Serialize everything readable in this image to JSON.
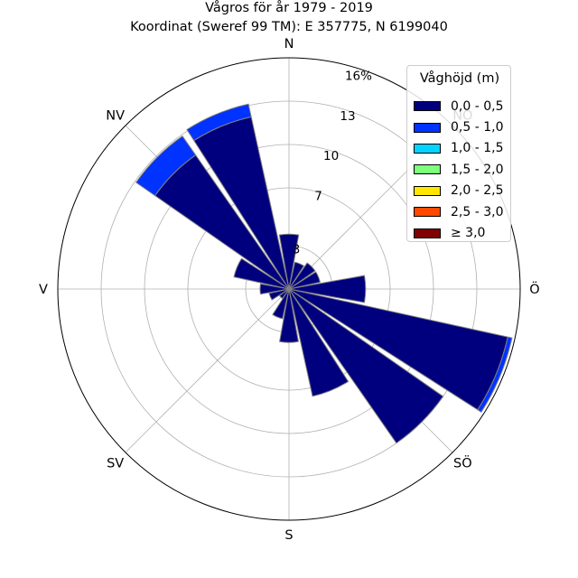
{
  "chart_data": {
    "type": "windrose",
    "title": "Vågros för år 1979 - 2019",
    "subtitle": "Koordinat (Sweref 99 TM): E 357775, N 6199040",
    "directions": [
      "N",
      "NNÖ",
      "NÖ",
      "ÖNÖ",
      "Ö",
      "ÖSÖ",
      "SÖ",
      "SSÖ",
      "S",
      "SSV",
      "SV",
      "VSV",
      "V",
      "VNV",
      "NV",
      "NNV"
    ],
    "compass_labels": [
      "N",
      "NÖ",
      "Ö",
      "SÖ",
      "S",
      "SV",
      "V",
      "NV"
    ],
    "radial_ticks": [
      "3",
      "7",
      "10",
      "13",
      "16%"
    ],
    "radial_max": 16,
    "legend": {
      "title": "Våghöjd (m)",
      "bins": [
        "0,0 - 0,5",
        "0,5 - 1,0",
        "1,0 - 1,5",
        "1,5 - 2,0",
        "2,0 - 2,5",
        "2,5 - 3,0",
        "≥ 3,0"
      ],
      "colors": [
        "#00007f",
        "#0033ff",
        "#00d4ff",
        "#7dff7a",
        "#ffe600",
        "#ff4800",
        "#7f0000"
      ]
    },
    "series": [
      {
        "name": "0,0 - 0,5",
        "values": [
          3.8,
          1.9,
          2.2,
          2.2,
          5.3,
          15.5,
          13.0,
          7.6,
          3.7,
          2.1,
          0.8,
          1.4,
          2.0,
          3.9,
          11.3,
          12.2
        ]
      },
      {
        "name": "0,5 - 1,0",
        "values": [
          0.0,
          0.0,
          0.0,
          0.0,
          0.0,
          0.3,
          0.0,
          0.0,
          0.0,
          0.0,
          0.0,
          0.0,
          0.0,
          0.0,
          1.6,
          0.9
        ]
      },
      {
        "name": "1,0 - 1,5",
        "values": [
          0,
          0,
          0,
          0,
          0,
          0,
          0,
          0,
          0,
          0,
          0,
          0,
          0,
          0,
          0,
          0
        ]
      },
      {
        "name": "1,5 - 2,0",
        "values": [
          0,
          0,
          0,
          0,
          0,
          0,
          0,
          0,
          0,
          0,
          0,
          0,
          0,
          0,
          0,
          0
        ]
      },
      {
        "name": "2,0 - 2,5",
        "values": [
          0,
          0,
          0,
          0,
          0,
          0,
          0,
          0,
          0,
          0,
          0,
          0,
          0,
          0,
          0,
          0
        ]
      },
      {
        "name": "2,5 - 3,0",
        "values": [
          0,
          0,
          0,
          0,
          0,
          0,
          0,
          0,
          0,
          0,
          0,
          0,
          0,
          0,
          0,
          0
        ]
      },
      {
        "name": "≥ 3,0",
        "values": [
          0,
          0,
          0,
          0,
          0,
          0,
          0,
          0,
          0,
          0,
          0,
          0,
          0,
          0,
          0,
          0
        ]
      }
    ],
    "grid": true,
    "legend_position": "top-right"
  }
}
